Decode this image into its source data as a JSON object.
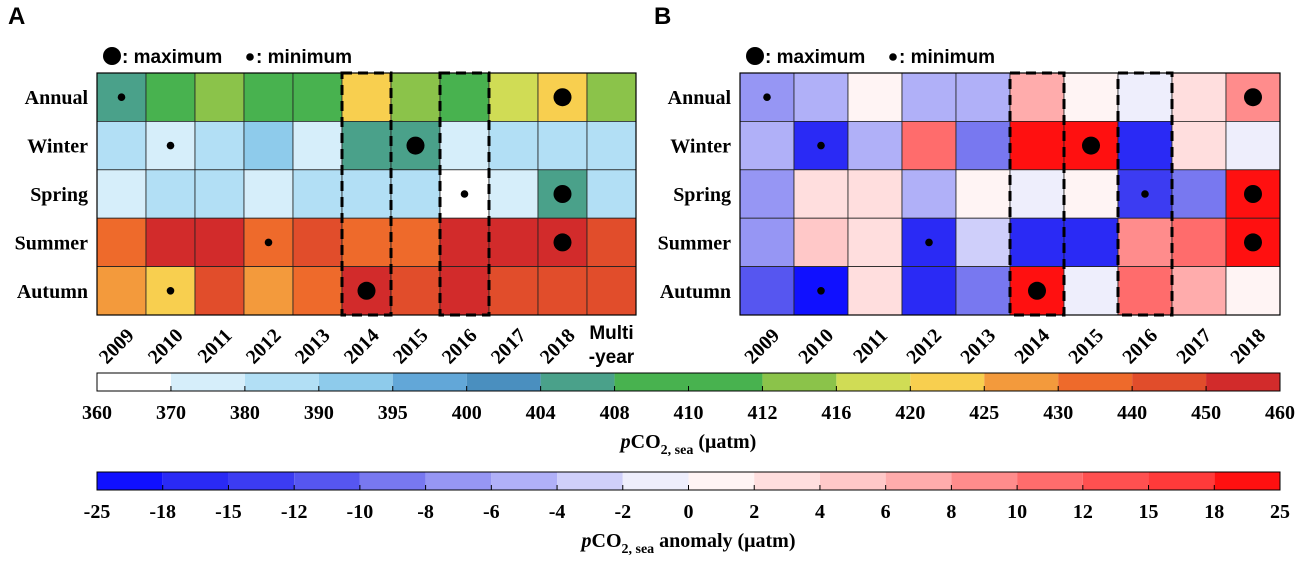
{
  "chart_data": [
    {
      "panel": "A",
      "type": "heatmap",
      "legend_max": "maximum",
      "legend_min": "minimum",
      "rows": [
        "Annual",
        "Winter",
        "Spring",
        "Summer",
        "Autumn"
      ],
      "columns": [
        "2009",
        "2010",
        "2011",
        "2012",
        "2013",
        "2014",
        "2015",
        "2016",
        "2017",
        "2018"
      ],
      "multiyear_label": [
        "Multi",
        "-year"
      ],
      "colorbar": "pco2",
      "values": [
        [
          405,
          411,
          414,
          411,
          411,
          423,
          414,
          411,
          418,
          423,
          414
        ],
        [
          385,
          375,
          385,
          392,
          375,
          405,
          405,
          375,
          385,
          385,
          385
        ],
        [
          375,
          385,
          385,
          375,
          385,
          385,
          385,
          365,
          375,
          405,
          385
        ],
        [
          435,
          455,
          455,
          435,
          445,
          435,
          435,
          455,
          455,
          455,
          445
        ],
        [
          427,
          423,
          445,
          427,
          435,
          455,
          445,
          455,
          445,
          445,
          445
        ]
      ],
      "markers": [
        {
          "row": "Annual",
          "col": "2009",
          "kind": "minimum"
        },
        {
          "row": "Annual",
          "col": "2018",
          "kind": "maximum"
        },
        {
          "row": "Winter",
          "col": "2010",
          "kind": "minimum"
        },
        {
          "row": "Winter",
          "col": "2015",
          "kind": "maximum"
        },
        {
          "row": "Spring",
          "col": "2016",
          "kind": "minimum"
        },
        {
          "row": "Spring",
          "col": "2018",
          "kind": "maximum"
        },
        {
          "row": "Summer",
          "col": "2012",
          "kind": "minimum"
        },
        {
          "row": "Summer",
          "col": "2018",
          "kind": "maximum"
        },
        {
          "row": "Autumn",
          "col": "2010",
          "kind": "minimum"
        },
        {
          "row": "Autumn",
          "col": "2014",
          "kind": "maximum"
        }
      ],
      "highlight_columns": [
        "2014",
        "2016"
      ]
    },
    {
      "panel": "B",
      "type": "heatmap",
      "legend_max": "maximum",
      "legend_min": "minimum",
      "rows": [
        "Annual",
        "Winter",
        "Spring",
        "Summer",
        "Autumn"
      ],
      "columns": [
        "2009",
        "2010",
        "2011",
        "2012",
        "2013",
        "2014",
        "2015",
        "2016",
        "2017",
        "2018"
      ],
      "colorbar": "anomaly",
      "values": [
        [
          -7,
          -5,
          1,
          -5,
          -5,
          7,
          1,
          -1,
          3,
          9
        ],
        [
          -5,
          -16,
          -5,
          11,
          -9,
          20,
          20,
          -16,
          3,
          -1
        ],
        [
          -7,
          3,
          3,
          -5,
          1,
          -1,
          1,
          -13,
          -9,
          20
        ],
        [
          -7,
          5,
          3,
          -16,
          -3,
          -16,
          -16,
          9,
          11,
          20
        ],
        [
          -11,
          -20,
          3,
          -16,
          -9,
          20,
          -1,
          11,
          7,
          1
        ]
      ],
      "markers": [
        {
          "row": "Annual",
          "col": "2009",
          "kind": "minimum"
        },
        {
          "row": "Annual",
          "col": "2018",
          "kind": "maximum"
        },
        {
          "row": "Winter",
          "col": "2010",
          "kind": "minimum"
        },
        {
          "row": "Winter",
          "col": "2015",
          "kind": "maximum"
        },
        {
          "row": "Spring",
          "col": "2016",
          "kind": "minimum"
        },
        {
          "row": "Spring",
          "col": "2018",
          "kind": "maximum"
        },
        {
          "row": "Summer",
          "col": "2012",
          "kind": "minimum"
        },
        {
          "row": "Summer",
          "col": "2018",
          "kind": "maximum"
        },
        {
          "row": "Autumn",
          "col": "2010",
          "kind": "minimum"
        },
        {
          "row": "Autumn",
          "col": "2014",
          "kind": "maximum"
        }
      ],
      "highlight_columns": [
        "2014",
        "2016"
      ]
    }
  ],
  "colorbars": {
    "pco2": {
      "ticks": [
        "360",
        "370",
        "380",
        "390",
        "395",
        "400",
        "404",
        "408",
        "410",
        "412",
        "416",
        "420",
        "425",
        "430",
        "440",
        "450",
        "460"
      ],
      "colors": [
        "#ffffff",
        "#d6eefa",
        "#b2dff5",
        "#8ecbeb",
        "#62a7d8",
        "#4a8fbf",
        "#4aa18a",
        "#48b24f",
        "#48b24f",
        "#8bc34a",
        "#d0dc55",
        "#f8cf4f",
        "#f39a3c",
        "#ee6a2b",
        "#e14d2b",
        "#d22b2b"
      ],
      "label_main": "pCO",
      "label_sub": "2, sea",
      "label_unit": " (μatm)"
    },
    "anomaly": {
      "ticks": [
        "-25",
        "-18",
        "-15",
        "-12",
        "-10",
        "-8",
        "-6",
        "-4",
        "-2",
        "0",
        "2",
        "4",
        "6",
        "8",
        "10",
        "12",
        "15",
        "18",
        "25"
      ],
      "colors": [
        "#1010ff",
        "#2a2af5",
        "#3c3cf2",
        "#5656f0",
        "#7878f0",
        "#9696f4",
        "#b0b0f8",
        "#cfcffa",
        "#eeeefc",
        "#fff4f4",
        "#ffdede",
        "#ffc8c8",
        "#ffacac",
        "#ff8c8c",
        "#ff6c6c",
        "#ff5050",
        "#ff3a3a",
        "#ff1010"
      ],
      "label_main": "pCO",
      "label_sub": "2, sea",
      "label_unit": " anomaly (μatm)"
    }
  }
}
